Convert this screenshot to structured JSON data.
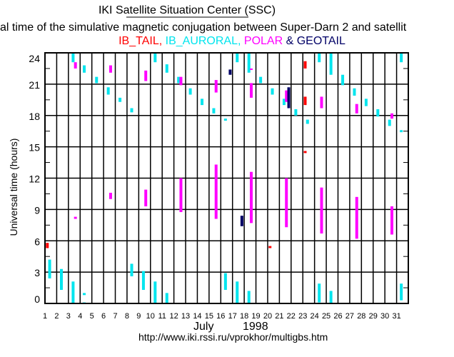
{
  "chart_data": {
    "type": "scatter",
    "title": "IKI Satellite Situation Center (SSC)",
    "subtitle": "al time of the simulative magnetic conjugation between Super-Darn 2 and satellit",
    "legend": [
      {
        "name": "IB_TAIL,",
        "color": "#ff0000"
      },
      {
        "name": "IB_AURORAL,",
        "color": "#00e5ee"
      },
      {
        "name": "POLAR",
        "color": "#ff00ff"
      },
      {
        "name": "& GEOTAIL",
        "color": "#000066"
      }
    ],
    "xlabel_month": "July",
    "xlabel_year": "1998",
    "ylabel": "Universal time (hours)",
    "footer": "http://www.iki.rssi.ru/vprokhor/multigbs.htm",
    "xlim": [
      1,
      32
    ],
    "ylim": [
      0,
      24
    ],
    "x_ticks": [
      "1",
      "2",
      "3",
      "4",
      "5",
      "6",
      "7",
      "8",
      "9",
      "10",
      "11",
      "12",
      "13",
      "14",
      "15",
      "16",
      "17",
      "18",
      "19",
      "20",
      "21",
      "22",
      "23",
      "24",
      "25",
      "26",
      "27",
      "28",
      "29",
      "30",
      "31"
    ],
    "y_ticks": [
      "0",
      "3",
      "6",
      "9",
      "12",
      "15",
      "18",
      "21",
      "24"
    ],
    "grid": true,
    "series": [
      {
        "name": "IB_TAIL",
        "color": "#ff0000",
        "segments": [
          [
            1.2,
            5.3,
            5.8
          ],
          [
            20.2,
            5.3,
            5.5
          ],
          [
            23.2,
            22.5,
            23.2
          ],
          [
            23.2,
            19.0,
            19.8
          ],
          [
            23.2,
            14.4,
            14.6
          ]
        ]
      },
      {
        "name": "IB_AURORAL",
        "color": "#00e5ee",
        "segments": [
          [
            1.4,
            2.4,
            4.2
          ],
          [
            2.4,
            1.3,
            3.3
          ],
          [
            3.4,
            0,
            2.1
          ],
          [
            4.35,
            0.8,
            1.0
          ],
          [
            4.35,
            0,
            0.1
          ],
          [
            8.4,
            2.6,
            3.8
          ],
          [
            9.4,
            1.3,
            3.1
          ],
          [
            10.4,
            0,
            2.1
          ],
          [
            11.4,
            0,
            1.0
          ],
          [
            16.4,
            1.3,
            2.9
          ],
          [
            17.4,
            0,
            2.1
          ],
          [
            18.4,
            0,
            1.2
          ],
          [
            24.4,
            0.1,
            1.9
          ],
          [
            25.4,
            0,
            1.2
          ],
          [
            31.4,
            0.3,
            1.9
          ],
          [
            3.4,
            23.1,
            24
          ],
          [
            4.35,
            22.1,
            22.8
          ],
          [
            5.4,
            21.1,
            21.7
          ],
          [
            6.4,
            20.0,
            20.7
          ],
          [
            7.4,
            19.3,
            19.7
          ],
          [
            8.4,
            18.3,
            18.7
          ],
          [
            10.4,
            23.1,
            24
          ],
          [
            11.4,
            22.1,
            22.9
          ],
          [
            12.4,
            21.1,
            21.7
          ],
          [
            13.4,
            20.0,
            20.6
          ],
          [
            14.4,
            19.0,
            19.6
          ],
          [
            15.4,
            18.2,
            18.7
          ],
          [
            16.4,
            17.5,
            17.7
          ],
          [
            17.4,
            23.1,
            24
          ],
          [
            18.4,
            22.1,
            24
          ],
          [
            19.4,
            21.1,
            21.7
          ],
          [
            20.4,
            20.0,
            20.6
          ],
          [
            21.4,
            19.0,
            19.6
          ],
          [
            22.4,
            18.0,
            18.6
          ],
          [
            23.4,
            17.2,
            17.6
          ],
          [
            24.4,
            23.1,
            24
          ],
          [
            25.4,
            21.9,
            24
          ],
          [
            26.4,
            20.9,
            21.9
          ],
          [
            27.4,
            19.9,
            20.6
          ],
          [
            28.4,
            18.9,
            19.6
          ],
          [
            29.4,
            17.9,
            18.6
          ],
          [
            30.4,
            17.0,
            17.6
          ],
          [
            31.4,
            23.1,
            24
          ],
          [
            31.4,
            16.4,
            16.6
          ]
        ]
      },
      {
        "name": "POLAR",
        "color": "#ff00ff",
        "segments": [
          [
            3.6,
            8.1,
            8.3
          ],
          [
            6.6,
            10.0,
            10.6
          ],
          [
            9.6,
            9.3,
            10.9
          ],
          [
            12.6,
            8.75,
            12.0
          ],
          [
            15.6,
            8.1,
            13.3
          ],
          [
            18.6,
            7.7,
            12.6
          ],
          [
            21.6,
            7.3,
            12.0
          ],
          [
            24.6,
            6.7,
            11.1
          ],
          [
            27.6,
            6.2,
            10.2
          ],
          [
            30.6,
            6.6,
            9.3
          ],
          [
            3.6,
            22.5,
            23.1
          ],
          [
            6.6,
            22.1,
            22.8
          ],
          [
            9.6,
            21.3,
            22.3
          ],
          [
            12.6,
            20.9,
            21.7
          ],
          [
            15.6,
            20.2,
            21.4
          ],
          [
            18.6,
            22.4,
            22.5
          ],
          [
            18.6,
            19.7,
            21.1
          ],
          [
            21.6,
            19.3,
            20.4
          ],
          [
            24.6,
            18.7,
            19.8
          ],
          [
            27.6,
            18.2,
            19.1
          ],
          [
            30.6,
            17.7,
            18.2
          ]
        ]
      },
      {
        "name": "GEOTAIL",
        "color": "#000066",
        "segments": [
          [
            16.8,
            21.9,
            22.4
          ],
          [
            17.8,
            7.4,
            8.4
          ],
          [
            21.8,
            18.7,
            20.7
          ]
        ]
      }
    ]
  }
}
